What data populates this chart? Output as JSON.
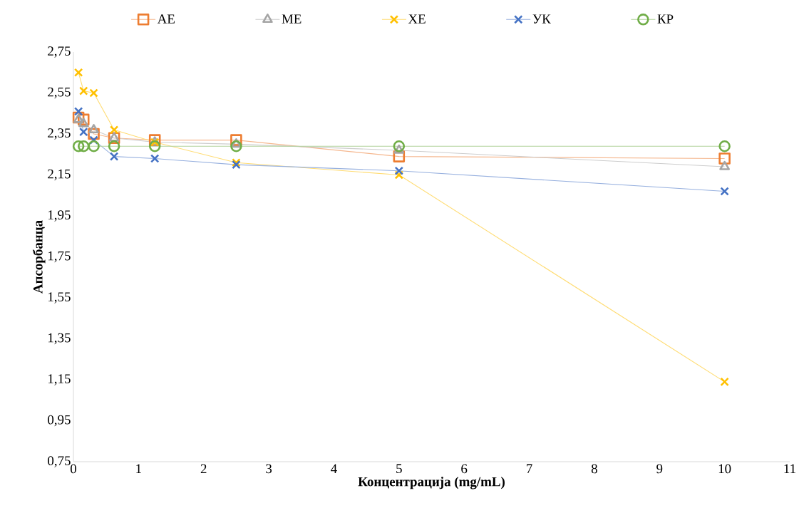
{
  "chart_data": {
    "type": "line",
    "xlabel": "Концентрација (mg/mL)",
    "ylabel": "Апсорбанца",
    "x": [
      0.078,
      0.156,
      0.3125,
      0.625,
      1.25,
      2.5,
      5,
      10
    ],
    "series": [
      {
        "name": "АЕ",
        "color": "#ed7d31",
        "marker": "square",
        "values": [
          2.43,
          2.42,
          2.35,
          2.33,
          2.32,
          2.32,
          2.24,
          2.23
        ]
      },
      {
        "name": "МЕ",
        "color": "#a5a5a5",
        "marker": "triangle",
        "values": [
          2.42,
          2.4,
          2.37,
          2.33,
          2.31,
          2.3,
          2.27,
          2.19
        ]
      },
      {
        "name": "ХЕ",
        "color": "#ffc000",
        "marker": "cross",
        "values": [
          2.65,
          2.56,
          2.55,
          2.37,
          2.31,
          2.21,
          2.15,
          1.14
        ]
      },
      {
        "name": "УК",
        "color": "#4472c4",
        "marker": "cross",
        "values": [
          2.46,
          2.36,
          2.32,
          2.24,
          2.23,
          2.2,
          2.17,
          2.07
        ]
      },
      {
        "name": "КР",
        "color": "#70ad47",
        "marker": "circle",
        "values": [
          2.29,
          2.29,
          2.29,
          2.29,
          2.29,
          2.29,
          2.29,
          2.29
        ]
      }
    ],
    "xlim": [
      0,
      11
    ],
    "xticks": [
      0,
      1,
      2,
      3,
      4,
      5,
      6,
      7,
      8,
      9,
      10,
      11
    ],
    "ylim": [
      0.75,
      2.75
    ],
    "yticks": [
      {
        "value": 0.75,
        "label": "0,75"
      },
      {
        "value": 0.95,
        "label": "0,95"
      },
      {
        "value": 1.15,
        "label": "1,15"
      },
      {
        "value": 1.35,
        "label": "1,35"
      },
      {
        "value": 1.55,
        "label": "1,55"
      },
      {
        "value": 1.75,
        "label": "1,75"
      },
      {
        "value": 1.95,
        "label": "1,95"
      },
      {
        "value": 2.15,
        "label": "2,15"
      },
      {
        "value": 2.35,
        "label": "2,35"
      },
      {
        "value": 2.55,
        "label": "2,55"
      },
      {
        "value": 2.75,
        "label": "2,75"
      }
    ],
    "grid": false,
    "legend": "top",
    "line_style": "solid"
  }
}
